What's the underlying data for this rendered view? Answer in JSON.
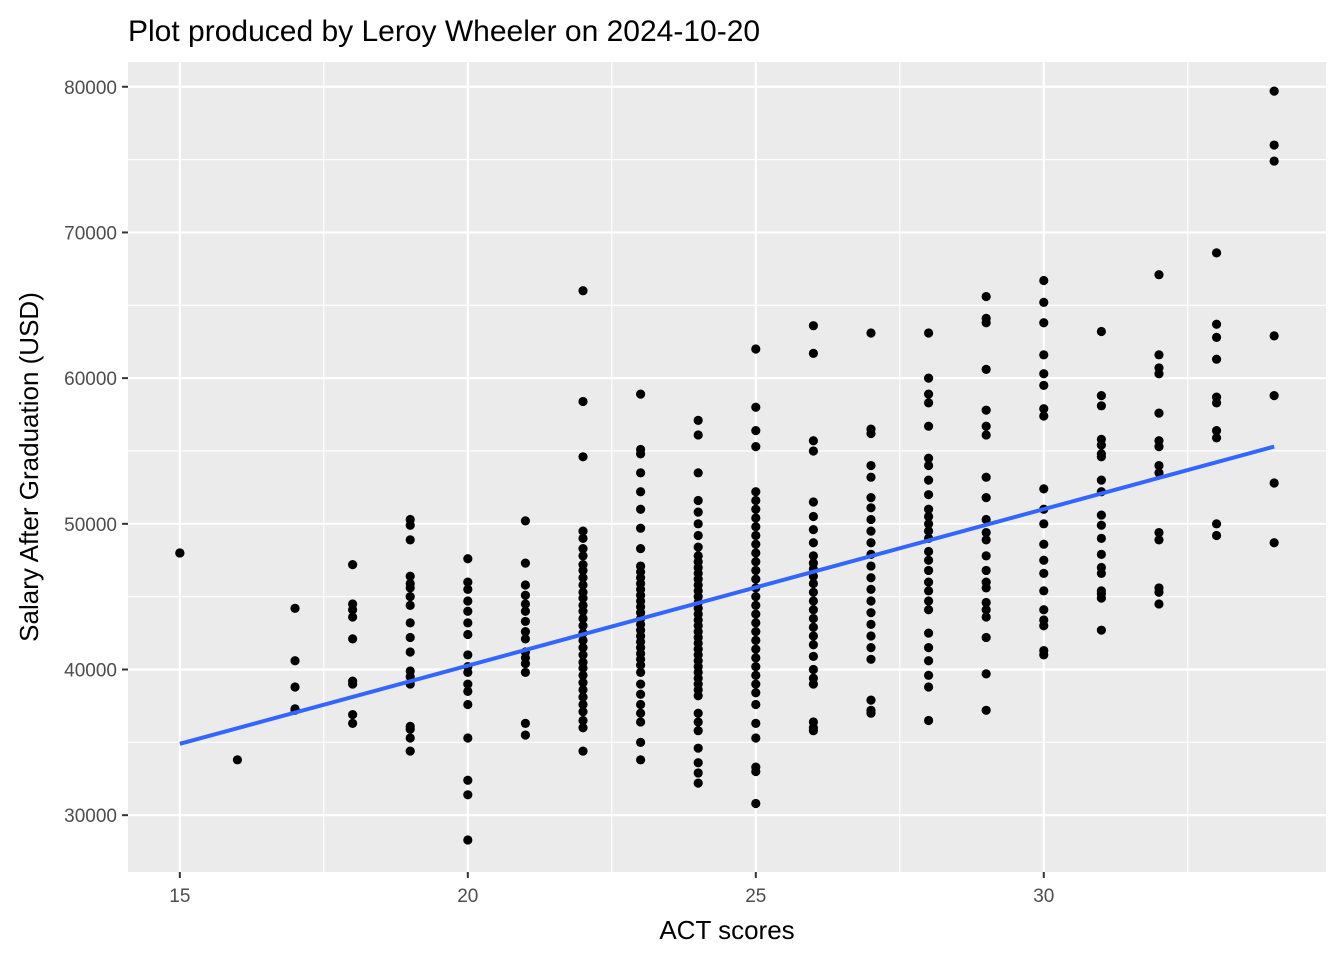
{
  "chart_data": {
    "type": "scatter",
    "title": "Plot produced by Leroy Wheeler on 2024-10-20",
    "xlabel": "ACT scores",
    "ylabel": "Salary After Graduation (USD)",
    "xlim": [
      14.1,
      34.9
    ],
    "ylim": [
      26100,
      81700
    ],
    "x_ticks": [
      15,
      20,
      25,
      30
    ],
    "x_tick_labels": [
      "15",
      "20",
      "25",
      "30"
    ],
    "y_ticks": [
      30000,
      40000,
      50000,
      60000,
      70000,
      80000
    ],
    "y_tick_labels": [
      "30000",
      "40000",
      "50000",
      "60000",
      "70000",
      "80000"
    ],
    "grid": true,
    "background_color": "#ebebeb",
    "point_color": "#000000",
    "trend_color": "#3366ff",
    "groups": [
      {
        "x": 15,
        "y": [
          48000,
          48000
        ]
      },
      {
        "x": 16,
        "y": [
          33800
        ]
      },
      {
        "x": 17,
        "y": [
          44200,
          40600,
          38800,
          37300,
          37200
        ]
      },
      {
        "x": 18,
        "y": [
          47200,
          44500,
          44100,
          43600,
          42100,
          39200,
          39000,
          36900,
          36300
        ]
      },
      {
        "x": 19,
        "y": [
          50300,
          49900,
          48900,
          46400,
          45900,
          45600,
          45000,
          44400,
          43200,
          42200,
          41200,
          39900,
          39500,
          39000,
          36100,
          35900,
          35300,
          34400
        ]
      },
      {
        "x": 20,
        "y": [
          47600,
          46000,
          45500,
          44700,
          44000,
          43200,
          42400,
          41000,
          40200,
          39800,
          39000,
          38500,
          37600,
          35300,
          32400,
          31400,
          28300
        ]
      },
      {
        "x": 21,
        "y": [
          50200,
          47300,
          45800,
          45100,
          44500,
          44000,
          43300,
          42600,
          42100,
          41200,
          40800,
          40400,
          39800,
          36300,
          35500
        ]
      },
      {
        "x": 22,
        "y": [
          66000,
          58400,
          54600,
          49500,
          49000,
          48300,
          47800,
          47200,
          46800,
          46300,
          45800,
          45300,
          44900,
          44400,
          44000,
          43500,
          43000,
          42500,
          42000,
          41500,
          41000,
          40500,
          40100,
          39600,
          39100,
          38600,
          38100,
          37600,
          37100,
          36500,
          36000,
          34400
        ]
      },
      {
        "x": 23,
        "y": [
          58900,
          55100,
          54800,
          53500,
          52200,
          51000,
          49700,
          48300,
          47100,
          46700,
          46300,
          45900,
          45500,
          45100,
          44700,
          44300,
          43900,
          43500,
          43100,
          42700,
          42300,
          41900,
          41500,
          41100,
          40700,
          40300,
          39800,
          39000,
          38300,
          37600,
          37000,
          36400,
          35000,
          33800
        ]
      },
      {
        "x": 24,
        "y": [
          57100,
          56100,
          53500,
          51600,
          50800,
          50000,
          49200,
          48400,
          47800,
          47400,
          47000,
          46600,
          46200,
          45800,
          45400,
          45000,
          44600,
          44200,
          43800,
          43400,
          43000,
          42600,
          42200,
          41800,
          41400,
          41000,
          40600,
          40200,
          39800,
          39400,
          39000,
          38600,
          38200,
          37000,
          36400,
          35800,
          34600,
          33600,
          32900,
          32200
        ]
      },
      {
        "x": 25,
        "y": [
          62000,
          58000,
          56400,
          55300,
          52200,
          51600,
          51000,
          50400,
          49800,
          49200,
          48600,
          48000,
          47400,
          46800,
          46200,
          45600,
          45000,
          44400,
          43800,
          43200,
          42600,
          42000,
          41400,
          40800,
          40200,
          39600,
          39000,
          38400,
          37600,
          36300,
          35300,
          33300,
          33000,
          30800
        ]
      },
      {
        "x": 26,
        "y": [
          63600,
          61700,
          55700,
          55000,
          51500,
          50500,
          49600,
          48700,
          47800,
          47300,
          46900,
          46400,
          45900,
          45300,
          44700,
          44100,
          43500,
          42900,
          42300,
          41700,
          40900,
          40000,
          39400,
          39000,
          36400,
          36000,
          35800
        ]
      },
      {
        "x": 27,
        "y": [
          63100,
          56500,
          56200,
          54000,
          53200,
          51800,
          51100,
          50300,
          49500,
          48700,
          47900,
          47100,
          46300,
          45500,
          44700,
          43900,
          43100,
          42300,
          41500,
          40700,
          37900,
          37200,
          37000
        ]
      },
      {
        "x": 28,
        "y": [
          63100,
          60000,
          58900,
          58300,
          56700,
          54500,
          54000,
          53000,
          52000,
          51000,
          50500,
          50000,
          49500,
          49000,
          48100,
          47500,
          46800,
          46000,
          45400,
          44700,
          44100,
          42500,
          41500,
          40600,
          39600,
          38800,
          36500
        ]
      },
      {
        "x": 29,
        "y": [
          65600,
          64100,
          63800,
          60600,
          57800,
          56700,
          56100,
          53200,
          51800,
          50300,
          49400,
          48900,
          47800,
          46800,
          46000,
          45600,
          44600,
          44100,
          43600,
          42200,
          39700,
          37200
        ]
      },
      {
        "x": 30,
        "y": [
          66700,
          65200,
          63800,
          61600,
          60300,
          59500,
          57900,
          57400,
          52400,
          51000,
          50000,
          48600,
          47500,
          46600,
          45400,
          44100,
          43400,
          43000,
          41300,
          41000
        ]
      },
      {
        "x": 31,
        "y": [
          63200,
          58800,
          58100,
          55800,
          55400,
          54800,
          54600,
          53000,
          52200,
          50600,
          49900,
          49000,
          47900,
          47000,
          46600,
          45400,
          45200,
          44900,
          42700
        ]
      },
      {
        "x": 32,
        "y": [
          67100,
          61600,
          60700,
          60300,
          57600,
          55700,
          55300,
          54000,
          53500,
          49400,
          48900,
          45600,
          45300,
          44500
        ]
      },
      {
        "x": 33,
        "y": [
          68600,
          63700,
          62800,
          61300,
          58700,
          58300,
          56400,
          55900,
          50000,
          49200
        ]
      },
      {
        "x": 34,
        "y": [
          79700,
          76000,
          74900,
          62900,
          58800,
          52800,
          48700
        ]
      }
    ],
    "trend": {
      "method": "linear",
      "x": [
        15,
        34
      ],
      "y": [
        34900,
        55300
      ]
    }
  }
}
